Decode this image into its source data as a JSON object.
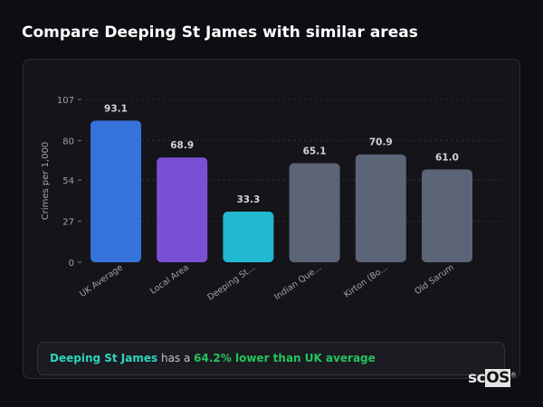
{
  "title": "Compare Deeping St James with similar areas",
  "chart_data": {
    "type": "bar",
    "categories": [
      "UK Average",
      "Local Area",
      "Deeping St...",
      "Indian Que...",
      "Kirton (Bo...",
      "Old Sarum"
    ],
    "values": [
      93.1,
      68.9,
      33.3,
      65.1,
      70.9,
      61.0
    ],
    "value_labels": [
      "93.1",
      "68.9",
      "33.3",
      "65.1",
      "70.9",
      "61.0"
    ],
    "colors": [
      "#3572d9",
      "#7b4fd4",
      "#22b8cf",
      "#5b6577",
      "#5b6577",
      "#5b6577"
    ],
    "ylabel": "Crimes per 1,000",
    "yticks": [
      0,
      27,
      54,
      80,
      107
    ],
    "ylim": [
      0,
      107
    ],
    "grid": true
  },
  "summary": {
    "place": "Deeping St James",
    "middle": " has a ",
    "stat": "64.2% lower than UK average"
  },
  "logo": {
    "prefix": "sc",
    "boxed": "OS",
    "mark": "®"
  }
}
